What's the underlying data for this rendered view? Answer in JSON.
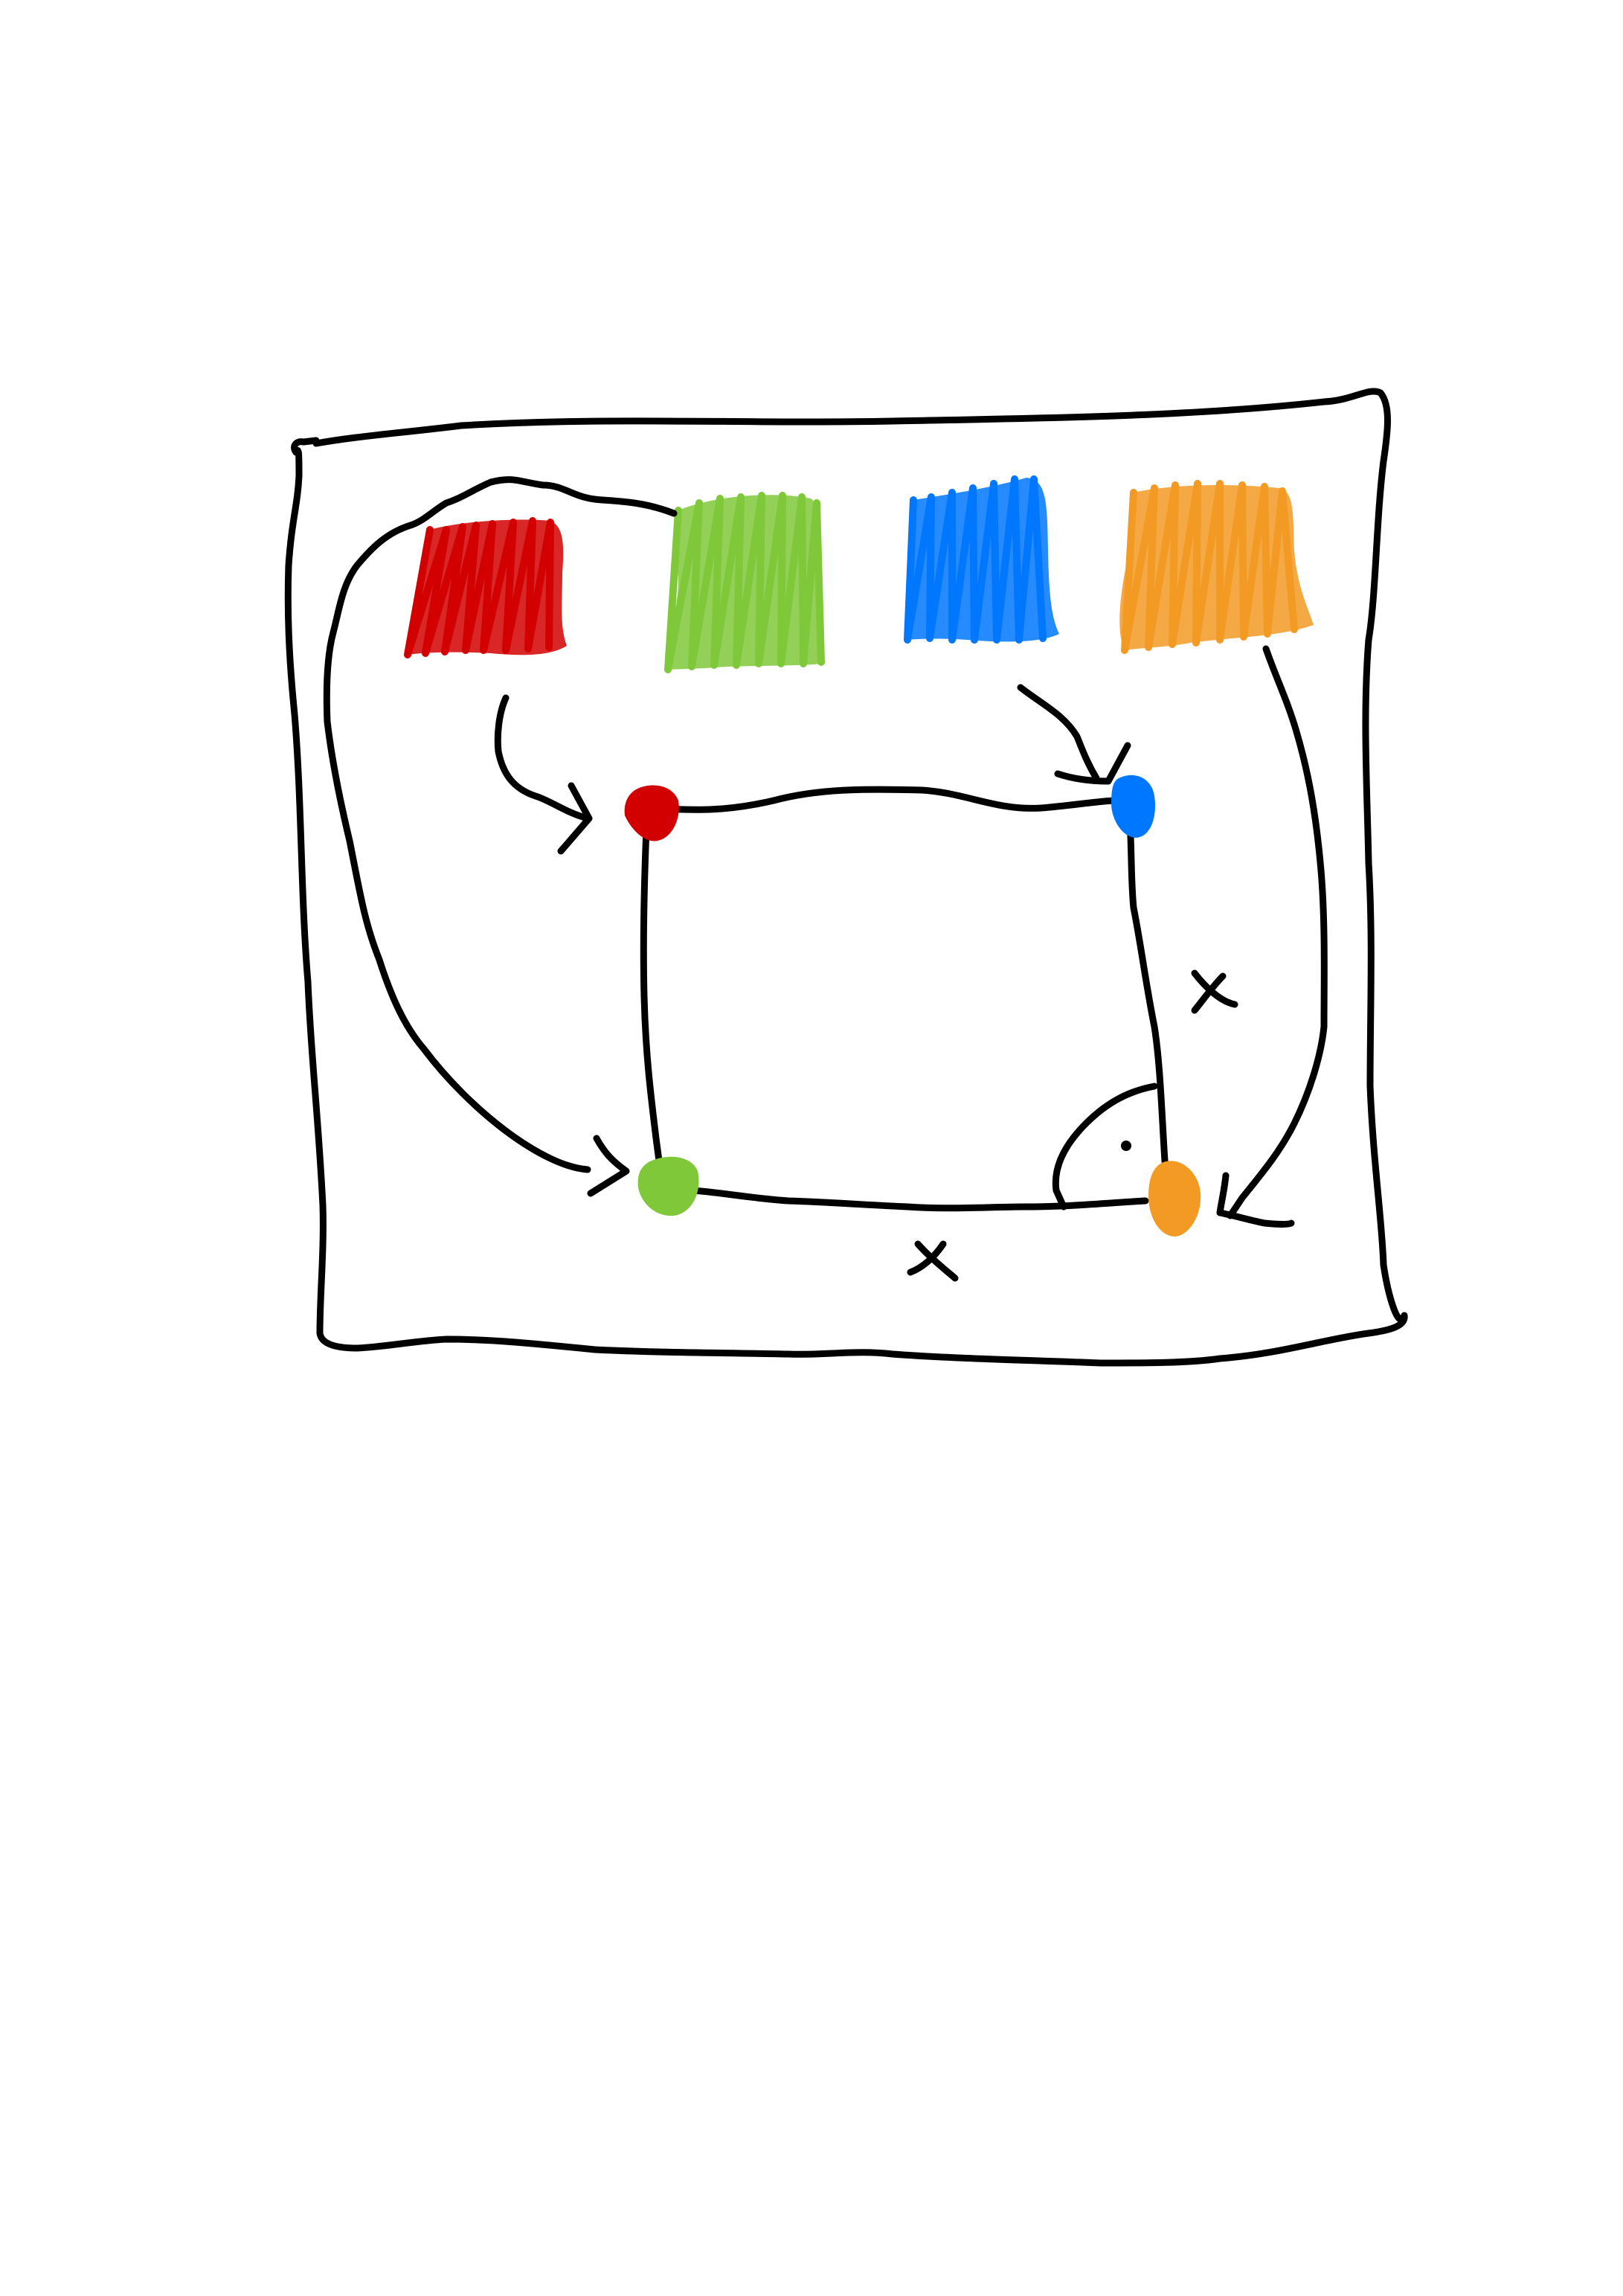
{
  "colors": {
    "ink": "#000000",
    "red": "#d20000",
    "green": "#7fc83a",
    "blue": "#0077ff",
    "orange": "#f39a24",
    "background": "#ffffff"
  },
  "swatches": [
    {
      "id": "red",
      "color": "#d20000"
    },
    {
      "id": "green",
      "color": "#7fc83a"
    },
    {
      "id": "blue",
      "color": "#0077ff"
    },
    {
      "id": "orange",
      "color": "#f39a24"
    }
  ],
  "nodes": [
    {
      "id": "top-left",
      "color": "#d20000"
    },
    {
      "id": "top-right",
      "color": "#0077ff"
    },
    {
      "id": "bottom-left",
      "color": "#7fc83a"
    },
    {
      "id": "bottom-right",
      "color": "#f39a24"
    }
  ],
  "mappings": [
    {
      "from": "red-swatch",
      "to": "top-left-node"
    },
    {
      "from": "blue-swatch",
      "to": "top-right-node"
    },
    {
      "from": "red-swatch",
      "to": "bottom-left-node"
    },
    {
      "from": "orange-swatch",
      "to": "bottom-right-node"
    }
  ],
  "marks": {
    "cross": "×",
    "right_angle_dot": "·"
  }
}
